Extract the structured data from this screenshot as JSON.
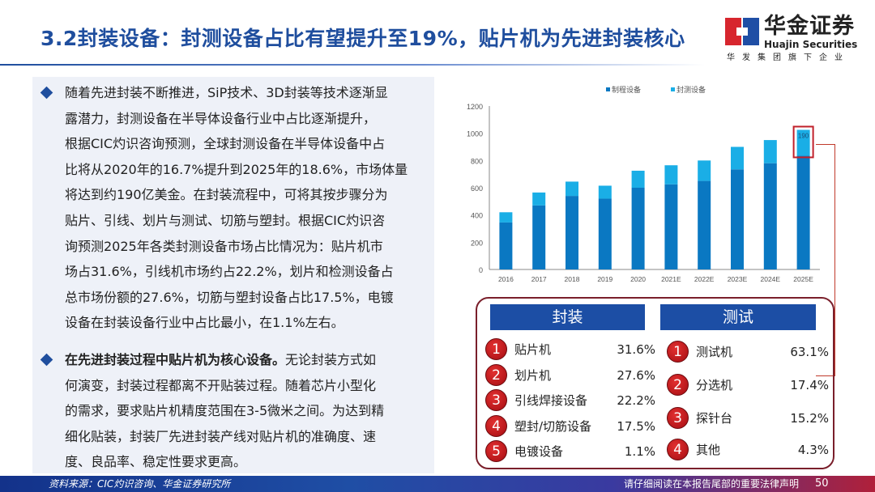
{
  "title": "3.2封装设备：封测设备占比有望提升至19%，贴片机为先进封装核心",
  "logo": {
    "cn": "华金证券",
    "en": "Huajin Securities",
    "sub": "华发集团旗下企业"
  },
  "bullets": [
    {
      "lines": [
        "随着先进封装不断推进，SiP技术、3D封装等技术逐渐显",
        "露潜力，封测设备在半导体设备行业中占比逐渐提升，",
        "根据CIC灼识咨询预测，全球封测设备在半导体设备中占",
        "比将从2020年的16.7%提升到2025年的18.6%，市场体量",
        "将达到约190亿美金。在封装流程中，可将其按步骤分为",
        "贴片、引线、划片与测试、切筋与塑封。根据CIC灼识咨",
        "询预测2025年各类封测设备市场占比情况为：贴片机市",
        "场占31.6%，引线机市场约占22.2%，划片和检测设备占",
        "总市场份额的27.6%，切筋与塑封设备占比17.5%，电镀",
        "设备在封装设备行业中占比最小，在1.1%左右。"
      ]
    },
    {
      "bold": "在先进封装过程中贴片机为核心设备。",
      "lines": [
        "无论封装方式如",
        "何演变，封装过程都离不开贴装过程。随着芯片小型化",
        "的需求，要求贴片机精度范围在3-5微米之间。为达到精",
        "细化贴装，封装厂先进封装产线对贴片机的准确度、速",
        "度、良品率、稳定性要求更高。"
      ]
    }
  ],
  "chart_data": {
    "type": "bar",
    "stacked": true,
    "categories": [
      "2016",
      "2017",
      "2018",
      "2019",
      "2020",
      "2021E",
      "2022E",
      "2023E",
      "2024E",
      "2025E"
    ],
    "series": [
      {
        "name": "制程设备",
        "color": "#0a78c2",
        "values": [
          345,
          470,
          540,
          520,
          600,
          625,
          650,
          735,
          780,
          835
        ]
      },
      {
        "name": "封测设备",
        "color": "#1aaee6",
        "values": [
          75,
          95,
          105,
          95,
          125,
          140,
          150,
          165,
          170,
          190
        ]
      }
    ],
    "annotation": "190",
    "ylim": [
      0,
      1200
    ],
    "yticks": [
      "0",
      "200",
      "400",
      "600",
      "800",
      "1000",
      "1200"
    ],
    "legend": "top",
    "grid": false
  },
  "packaging": {
    "header": "封装",
    "items": [
      {
        "n": "1",
        "label": "贴片机",
        "value": "31.6%"
      },
      {
        "n": "2",
        "label": "划片机",
        "value": "27.6%"
      },
      {
        "n": "3",
        "label": "引线焊接设备",
        "value": "22.2%"
      },
      {
        "n": "4",
        "label": "塑封/切筋设备",
        "value": "17.5%"
      },
      {
        "n": "5",
        "label": "电镀设备",
        "value": "1.1%"
      }
    ]
  },
  "testing": {
    "header": "测试",
    "items": [
      {
        "n": "1",
        "label": "测试机",
        "value": "63.1%"
      },
      {
        "n": "2",
        "label": "分选机",
        "value": "17.4%"
      },
      {
        "n": "3",
        "label": "探针台",
        "value": "15.2%"
      },
      {
        "n": "4",
        "label": "其他",
        "value": "4.3%"
      }
    ]
  },
  "footer": {
    "source": "资料来源：CIC灼识咨询、华金证券研究所",
    "disclaimer": "请仔细阅读在本报告尾部的重要法律声明",
    "page": "50"
  }
}
